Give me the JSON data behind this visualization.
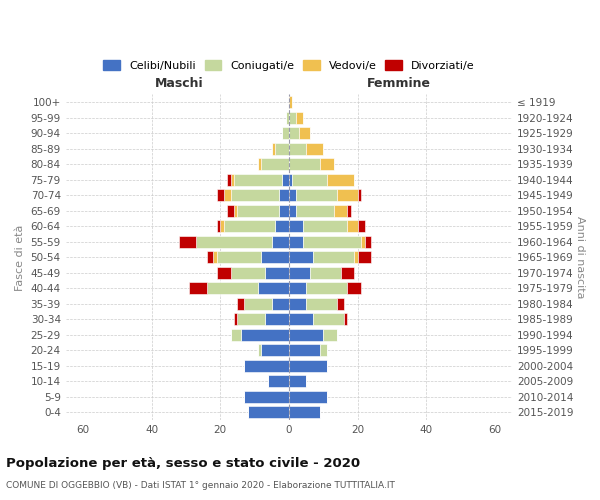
{
  "age_groups": [
    "0-4",
    "5-9",
    "10-14",
    "15-19",
    "20-24",
    "25-29",
    "30-34",
    "35-39",
    "40-44",
    "45-49",
    "50-54",
    "55-59",
    "60-64",
    "65-69",
    "70-74",
    "75-79",
    "80-84",
    "85-89",
    "90-94",
    "95-99",
    "100+"
  ],
  "birth_years": [
    "2015-2019",
    "2010-2014",
    "2005-2009",
    "2000-2004",
    "1995-1999",
    "1990-1994",
    "1985-1989",
    "1980-1984",
    "1975-1979",
    "1970-1974",
    "1965-1969",
    "1960-1964",
    "1955-1959",
    "1950-1954",
    "1945-1949",
    "1940-1944",
    "1935-1939",
    "1930-1934",
    "1925-1929",
    "1920-1924",
    "≤ 1919"
  ],
  "male": {
    "celibi": [
      12,
      13,
      6,
      13,
      8,
      14,
      7,
      5,
      9,
      7,
      8,
      5,
      4,
      3,
      3,
      2,
      0,
      0,
      0,
      0,
      0
    ],
    "coniugati": [
      0,
      0,
      0,
      0,
      1,
      3,
      8,
      8,
      15,
      10,
      13,
      22,
      15,
      12,
      14,
      14,
      8,
      4,
      2,
      1,
      0
    ],
    "vedovi": [
      0,
      0,
      0,
      0,
      0,
      0,
      0,
      0,
      0,
      0,
      1,
      0,
      1,
      1,
      2,
      1,
      1,
      1,
      0,
      0,
      0
    ],
    "divorziati": [
      0,
      0,
      0,
      0,
      0,
      0,
      1,
      2,
      5,
      4,
      2,
      5,
      1,
      2,
      2,
      1,
      0,
      0,
      0,
      0,
      0
    ]
  },
  "female": {
    "celibi": [
      9,
      11,
      5,
      11,
      9,
      10,
      7,
      5,
      5,
      6,
      7,
      4,
      4,
      2,
      2,
      1,
      0,
      0,
      0,
      0,
      0
    ],
    "coniugati": [
      0,
      0,
      0,
      0,
      2,
      4,
      9,
      9,
      12,
      9,
      12,
      17,
      13,
      11,
      12,
      10,
      9,
      5,
      3,
      2,
      0
    ],
    "vedovi": [
      0,
      0,
      0,
      0,
      0,
      0,
      0,
      0,
      0,
      0,
      1,
      1,
      3,
      4,
      6,
      8,
      4,
      5,
      3,
      2,
      1
    ],
    "divorziati": [
      0,
      0,
      0,
      0,
      0,
      0,
      1,
      2,
      4,
      4,
      4,
      2,
      2,
      1,
      1,
      0,
      0,
      0,
      0,
      0,
      0
    ]
  },
  "colors": {
    "celibi": "#4472C4",
    "coniugati": "#C5D89E",
    "vedovi": "#F0C050",
    "divorziati": "#C00000"
  },
  "xlim": 65,
  "title": "Popolazione per età, sesso e stato civile - 2020",
  "subtitle": "COMUNE DI OGGEBBIO (VB) - Dati ISTAT 1° gennaio 2020 - Elaborazione TUTTITALIA.IT",
  "ylabel_left": "Fasce di età",
  "ylabel_right": "Anni di nascita",
  "xlabel_left": "Maschi",
  "xlabel_right": "Femmine",
  "legend_labels": [
    "Celibi/Nubili",
    "Coniugati/e",
    "Vedovi/e",
    "Divorziati/e"
  ],
  "bg_color": "#ffffff",
  "grid_color": "#cccccc"
}
